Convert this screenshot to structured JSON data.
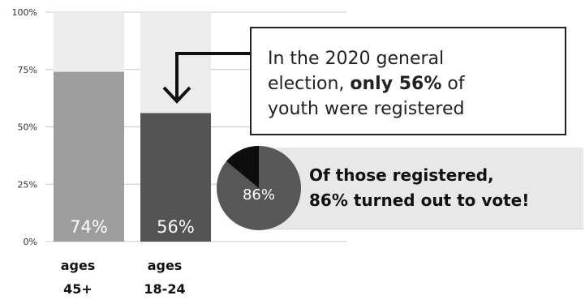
{
  "chart_data": {
    "type": "bar",
    "title": "",
    "xlabel": "",
    "ylabel": "",
    "ylim": [
      0,
      100
    ],
    "yticks": [
      0,
      25,
      50,
      75,
      100
    ],
    "ytick_labels": [
      "0%",
      "25%",
      "50%",
      "75%",
      "100%"
    ],
    "grid": true,
    "categories": [
      {
        "line1": "ages",
        "line2": "45+"
      },
      {
        "line1": "ages",
        "line2": "18-24"
      }
    ],
    "values": [
      74,
      56
    ],
    "value_labels": [
      "74%",
      "56%"
    ],
    "background_value": 100,
    "pie": {
      "turned_out_percent": 86,
      "label": "86%"
    }
  },
  "colors": {
    "bar_ages_45": "#9d9d9d",
    "bar_ages_18_24": "#545454",
    "bar_background": "#ececec",
    "grid": "#c8c8c8",
    "pie_main": "#575757",
    "pie_rest": "#0d0d0d",
    "panel": "#e8e8e8"
  },
  "callout": {
    "line1": "In the 2020 general",
    "line2_prefix": "election, ",
    "line2_bold": "only 56%",
    "line2_suffix": " of",
    "line3": "youth were registered"
  },
  "turnout": {
    "line1": "Of those registered,",
    "line2": "86% turned out to vote!"
  },
  "icons": {
    "arrow": "down-arrow-icon"
  }
}
